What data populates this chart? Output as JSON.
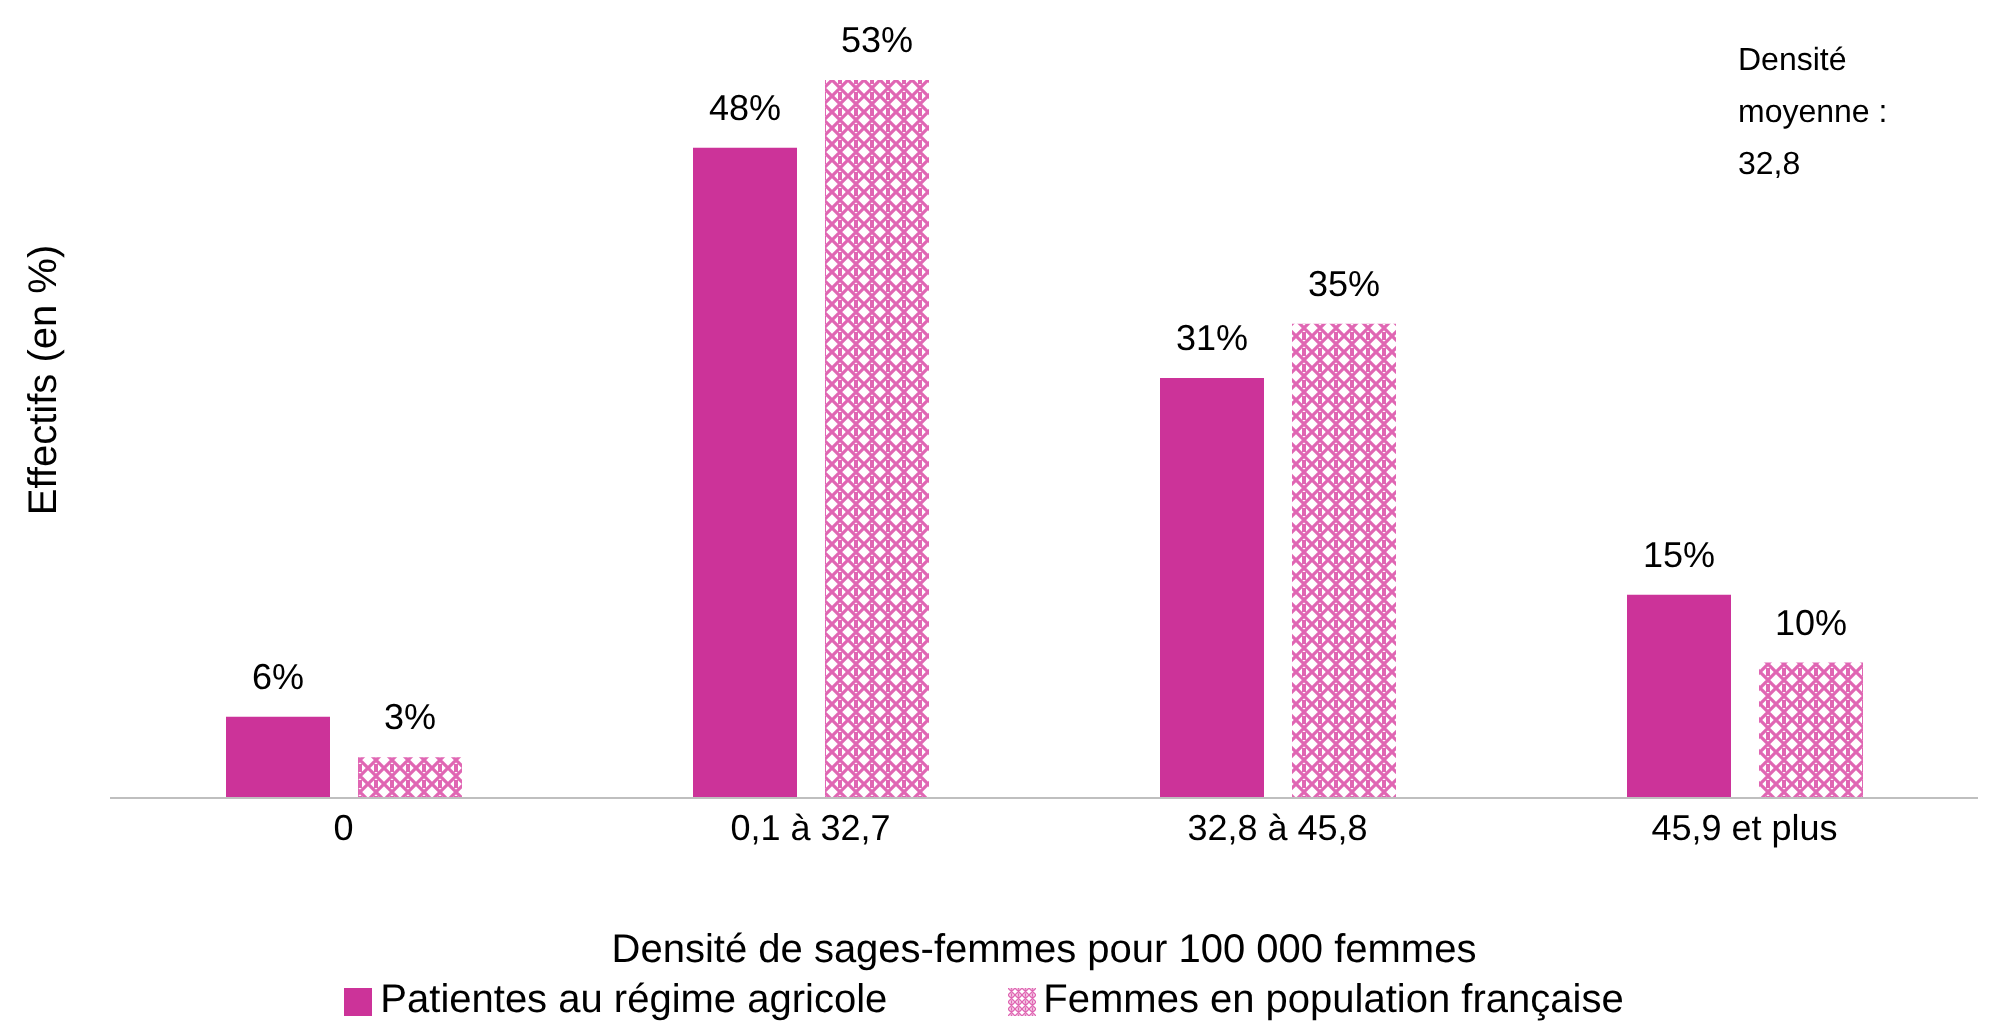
{
  "chart_data": {
    "type": "bar",
    "xlabel": "Densité de sages-femmes pour 100 000 femmes",
    "ylabel": "Effectifs (en %)",
    "categories": [
      "0",
      "0,1 à 32,7",
      "32,8 à 45,8",
      "45,9 et plus"
    ],
    "series": [
      {
        "name": "Patientes au régime agricole",
        "color": "#cc3399",
        "values": [
          6,
          48,
          31,
          15
        ],
        "value_labels": [
          "6%",
          "48%",
          "31%",
          "15%"
        ]
      },
      {
        "name": "Femmes en population française",
        "color": "#e066b3",
        "values": [
          3,
          53,
          35,
          10
        ],
        "value_labels": [
          "3%",
          "53%",
          "35%",
          "10%"
        ]
      }
    ],
    "annotations": [
      "Densité moyenne : 32,8"
    ],
    "legend": "bottom",
    "tick_labels": "x"
  }
}
